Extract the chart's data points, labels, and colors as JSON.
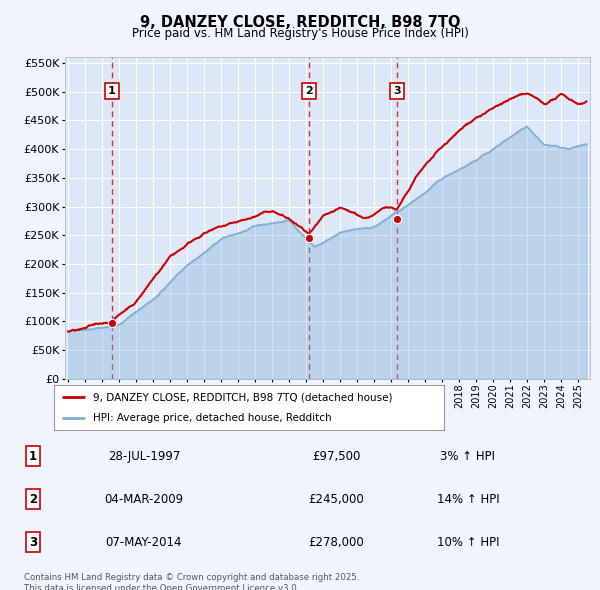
{
  "title_line1": "9, DANZEY CLOSE, REDDITCH, B98 7TQ",
  "title_line2": "Price paid vs. HM Land Registry's House Price Index (HPI)",
  "background_color": "#f0f4ff",
  "plot_bg_color": "#dce8f8",
  "grid_color": "#ffffff",
  "legend_label_red": "9, DANZEY CLOSE, REDDITCH, B98 7TQ (detached house)",
  "legend_label_blue": "HPI: Average price, detached house, Redditch",
  "red_color": "#cc0000",
  "blue_color": "#7fb0d8",
  "sale_markers": [
    {
      "year": 1997.57,
      "value": 97500,
      "label": "1"
    },
    {
      "year": 2009.17,
      "value": 245000,
      "label": "2"
    },
    {
      "year": 2014.35,
      "value": 278000,
      "label": "3"
    }
  ],
  "vline_years": [
    1997.57,
    2009.17,
    2014.35
  ],
  "table_rows": [
    {
      "num": "1",
      "date": "28-JUL-1997",
      "price": "£97,500",
      "change": "3% ↑ HPI"
    },
    {
      "num": "2",
      "date": "04-MAR-2009",
      "price": "£245,000",
      "change": "14% ↑ HPI"
    },
    {
      "num": "3",
      "date": "07-MAY-2014",
      "price": "£278,000",
      "change": "10% ↑ HPI"
    }
  ],
  "footer_text": "Contains HM Land Registry data © Crown copyright and database right 2025.\nThis data is licensed under the Open Government Licence v3.0.",
  "ylim": [
    0,
    560000
  ],
  "yticks": [
    0,
    50000,
    100000,
    150000,
    200000,
    250000,
    300000,
    350000,
    400000,
    450000,
    500000,
    550000
  ],
  "xlim_start": 1994.8,
  "xlim_end": 2025.7
}
